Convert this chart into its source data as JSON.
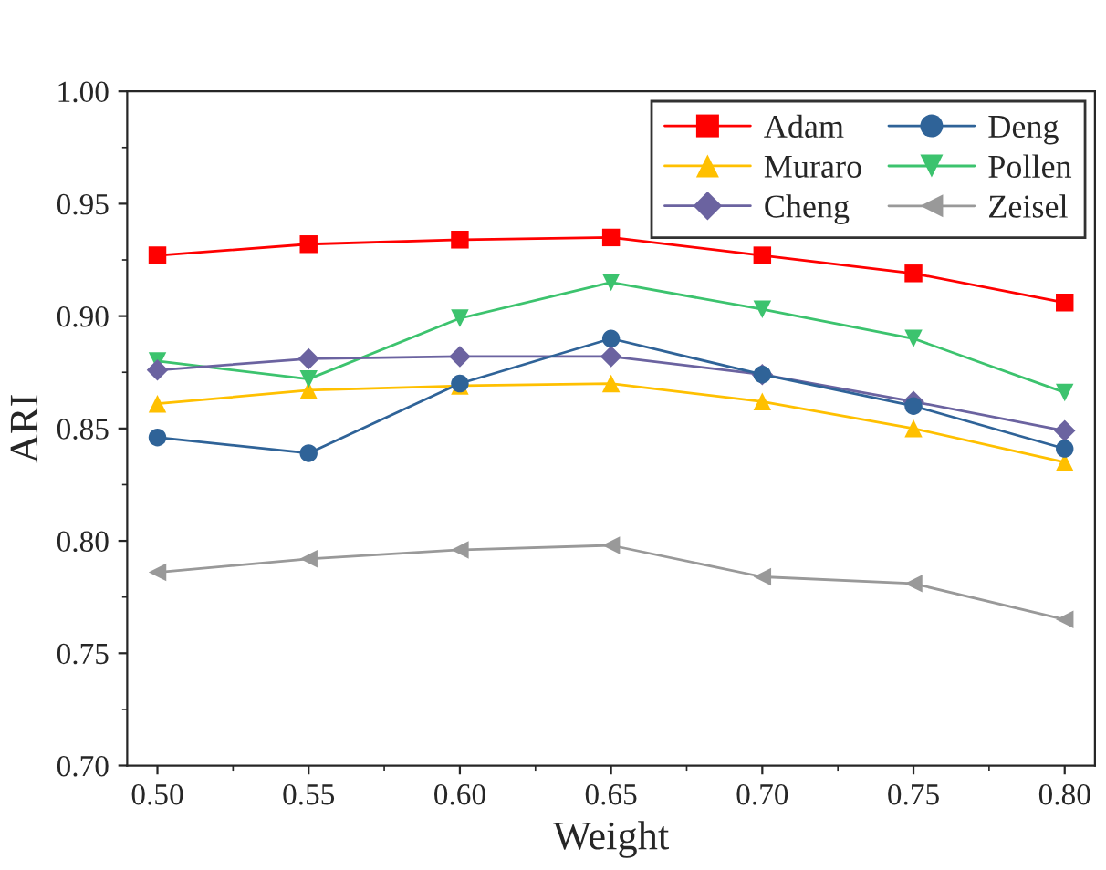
{
  "chart_data": {
    "type": "line",
    "xlabel": "Weight",
    "ylabel": "ARI",
    "x": [
      0.5,
      0.55,
      0.6,
      0.65,
      0.7,
      0.75,
      0.8
    ],
    "series": [
      {
        "name": "Adam",
        "color": "#ff0000",
        "marker": "square",
        "values": [
          0.927,
          0.932,
          0.934,
          0.935,
          0.927,
          0.919,
          0.906
        ]
      },
      {
        "name": "Deng",
        "color": "#2f6398",
        "marker": "circle",
        "values": [
          0.846,
          0.839,
          0.87,
          0.89,
          0.874,
          0.86,
          0.841
        ]
      },
      {
        "name": "Muraro",
        "color": "#ffc000",
        "marker": "triangle",
        "values": [
          0.861,
          0.867,
          0.869,
          0.87,
          0.862,
          0.85,
          0.835
        ]
      },
      {
        "name": "Pollen",
        "color": "#3cc36e",
        "marker": "triangle_down",
        "values": [
          0.88,
          0.872,
          0.899,
          0.915,
          0.903,
          0.89,
          0.866
        ]
      },
      {
        "name": "Cheng",
        "color": "#6b63a0",
        "marker": "diamond",
        "values": [
          0.876,
          0.881,
          0.882,
          0.882,
          0.874,
          0.862,
          0.849
        ]
      },
      {
        "name": "Zeisel",
        "color": "#999999",
        "marker": "triangle_left",
        "values": [
          0.786,
          0.792,
          0.796,
          0.798,
          0.784,
          0.781,
          0.765
        ]
      }
    ],
    "xlim": [
      0.49,
      0.81
    ],
    "xticks": [
      {
        "value": 0.5,
        "label": "0.50"
      },
      {
        "value": 0.55,
        "label": "0.55"
      },
      {
        "value": 0.6,
        "label": "0.60"
      },
      {
        "value": 0.65,
        "label": "0.65"
      },
      {
        "value": 0.7,
        "label": "0.70"
      },
      {
        "value": 0.75,
        "label": "0.75"
      },
      {
        "value": 0.8,
        "label": "0.80"
      }
    ],
    "ylim": [
      0.7,
      1.0
    ],
    "yticks": [
      {
        "value": 0.7,
        "label": "0.70"
      },
      {
        "value": 0.75,
        "label": "0.75"
      },
      {
        "value": 0.8,
        "label": "0.80"
      },
      {
        "value": 0.85,
        "label": "0.85"
      },
      {
        "value": 0.9,
        "label": "0.90"
      },
      {
        "value": 0.95,
        "label": "0.95"
      },
      {
        "value": 1.0,
        "label": "1.00"
      }
    ],
    "grid": false,
    "legend": "top right",
    "line_style": "solid"
  }
}
